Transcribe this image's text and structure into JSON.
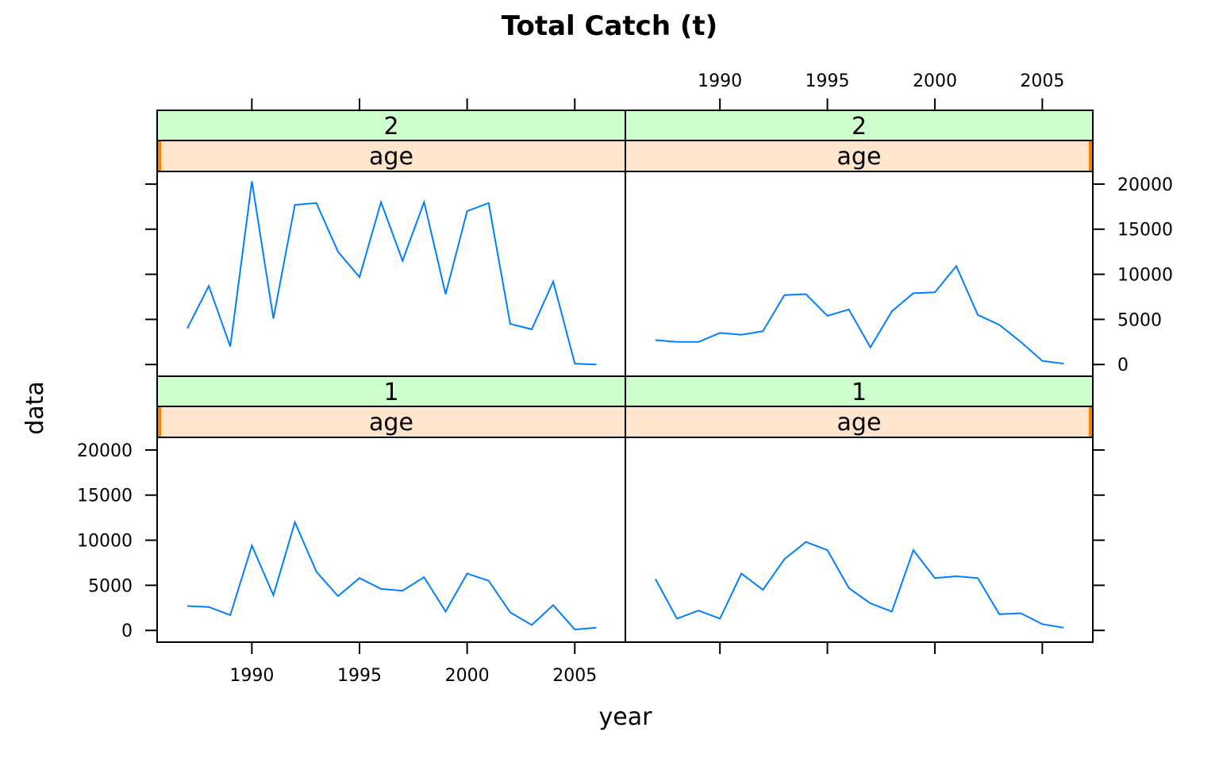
{
  "chart_data": {
    "type": "line",
    "title": "Total Catch (t)",
    "xlabel": "year",
    "ylabel": "data",
    "xlim": [
      1985.6,
      2007.35
    ],
    "ylim": [
      -1300,
      21400
    ],
    "x_ticks": [
      1990,
      1995,
      2000,
      2005
    ],
    "y_ticks": [
      0,
      5000,
      10000,
      15000,
      20000
    ],
    "colors": {
      "line": "#0080ff",
      "strip_top": "#ccffcc",
      "strip_bottom": "#ffe5cc",
      "strip_marker": "#ff7f00"
    },
    "panels": [
      {
        "strip_top": "2",
        "strip_bottom": "age",
        "x": [
          1987,
          1988,
          1989,
          1990,
          1991,
          1992,
          1993,
          1994,
          1995,
          1996,
          1997,
          1998,
          1999,
          2000,
          2001,
          2002,
          2003,
          2004,
          2005,
          2006
        ],
        "y": [
          4000,
          8700,
          2000,
          20300,
          5100,
          17700,
          17900,
          12500,
          9700,
          18000,
          11500,
          18000,
          7800,
          17000,
          17900,
          4500,
          3900,
          9200,
          100,
          0
        ]
      },
      {
        "strip_top": "2",
        "strip_bottom": "age",
        "x": [
          1987,
          1988,
          1989,
          1990,
          1991,
          1992,
          1993,
          1994,
          1995,
          1996,
          1997,
          1998,
          1999,
          2000,
          2001,
          2002,
          2003,
          2004,
          2005,
          2006
        ],
        "y": [
          2700,
          2500,
          2500,
          3500,
          3300,
          3700,
          7700,
          7800,
          5400,
          6100,
          1900,
          5900,
          7900,
          8000,
          10900,
          5500,
          4400,
          2500,
          400,
          100
        ]
      },
      {
        "strip_top": "1",
        "strip_bottom": "age",
        "x": [
          1987,
          1988,
          1989,
          1990,
          1991,
          1992,
          1993,
          1994,
          1995,
          1996,
          1997,
          1998,
          1999,
          2000,
          2001,
          2002,
          2003,
          2004,
          2005,
          2006
        ],
        "y": [
          2700,
          2600,
          1700,
          9400,
          3900,
          12000,
          6500,
          3800,
          5800,
          4600,
          4400,
          5900,
          2100,
          6300,
          5500,
          2000,
          600,
          2800,
          100,
          300
        ]
      },
      {
        "strip_top": "1",
        "strip_bottom": "age",
        "x": [
          1987,
          1988,
          1989,
          1990,
          1991,
          1992,
          1993,
          1994,
          1995,
          1996,
          1997,
          1998,
          1999,
          2000,
          2001,
          2002,
          2003,
          2004,
          2005,
          2006
        ],
        "y": [
          5700,
          1300,
          2200,
          1300,
          6300,
          4500,
          7900,
          9800,
          8900,
          4700,
          3000,
          2100,
          8900,
          5800,
          6000,
          5800,
          1800,
          1900,
          700,
          300
        ]
      }
    ]
  }
}
